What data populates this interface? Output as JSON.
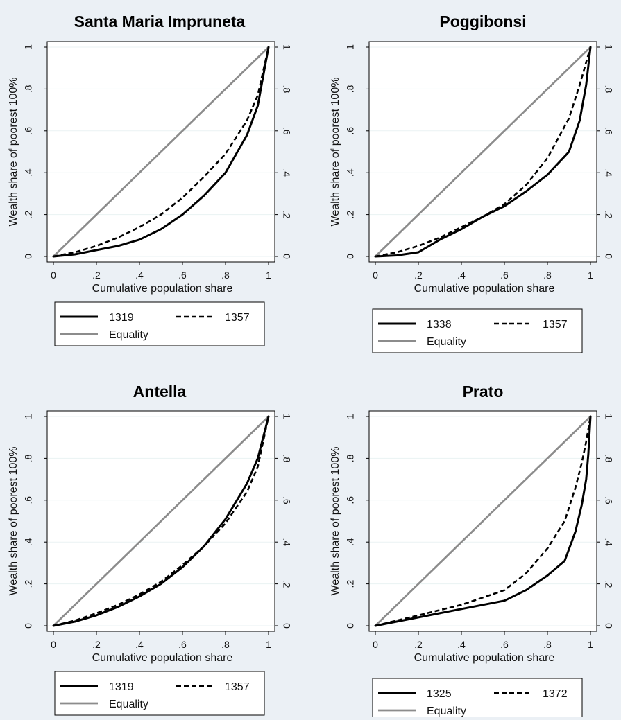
{
  "chart_data": [
    {
      "type": "line",
      "title": "Santa Maria Impruneta",
      "xlabel": "Cumulative population share",
      "ylabel": "Wealth share of poorest 100%",
      "xlim": [
        0,
        1
      ],
      "ylim": [
        0,
        1
      ],
      "x_ticks": [
        "0",
        ".2",
        ".4",
        ".6",
        ".8",
        "1"
      ],
      "y_ticks": [
        "0",
        ".2",
        ".4",
        ".6",
        ".8",
        "1"
      ],
      "series": [
        {
          "name": "1319",
          "style": "solid-black",
          "x": [
            0,
            0.1,
            0.2,
            0.3,
            0.4,
            0.5,
            0.6,
            0.7,
            0.8,
            0.9,
            0.95,
            1
          ],
          "y": [
            0,
            0.01,
            0.03,
            0.05,
            0.08,
            0.13,
            0.2,
            0.29,
            0.4,
            0.58,
            0.72,
            1
          ]
        },
        {
          "name": "1357",
          "style": "dashed-black",
          "x": [
            0,
            0.1,
            0.2,
            0.3,
            0.4,
            0.5,
            0.6,
            0.7,
            0.8,
            0.9,
            0.95,
            1
          ],
          "y": [
            0,
            0.02,
            0.05,
            0.09,
            0.14,
            0.2,
            0.28,
            0.38,
            0.49,
            0.65,
            0.77,
            1
          ]
        },
        {
          "name": "Equality",
          "style": "solid-gray",
          "x": [
            0,
            1
          ],
          "y": [
            0,
            1
          ]
        }
      ],
      "legend_rows": [
        [
          "1319",
          "1357"
        ],
        [
          "Equality"
        ]
      ],
      "legend_position": "bottom"
    },
    {
      "type": "line",
      "title": "Poggibonsi",
      "xlabel": "Cumulative population share",
      "ylabel": "Wealth share of poorest 100%",
      "xlim": [
        0,
        1
      ],
      "ylim": [
        0,
        1
      ],
      "x_ticks": [
        "0",
        ".2",
        ".4",
        ".6",
        ".8",
        "1"
      ],
      "y_ticks": [
        "0",
        ".2",
        ".4",
        ".6",
        ".8",
        "1"
      ],
      "series": [
        {
          "name": "1338",
          "style": "solid-black",
          "x": [
            0,
            0.1,
            0.2,
            0.3,
            0.4,
            0.5,
            0.6,
            0.7,
            0.8,
            0.9,
            0.95,
            0.98,
            1
          ],
          "y": [
            0,
            0.005,
            0.02,
            0.08,
            0.13,
            0.19,
            0.24,
            0.31,
            0.39,
            0.5,
            0.65,
            0.82,
            1
          ]
        },
        {
          "name": "1357",
          "style": "dashed-black",
          "x": [
            0,
            0.1,
            0.2,
            0.3,
            0.4,
            0.5,
            0.6,
            0.7,
            0.8,
            0.9,
            0.95,
            1
          ],
          "y": [
            0,
            0.02,
            0.05,
            0.09,
            0.14,
            0.19,
            0.25,
            0.34,
            0.47,
            0.66,
            0.82,
            1
          ]
        },
        {
          "name": "Equality",
          "style": "solid-gray",
          "x": [
            0,
            1
          ],
          "y": [
            0,
            1
          ]
        }
      ],
      "legend_rows": [
        [
          "1338",
          "1357"
        ],
        [
          "Equality"
        ]
      ],
      "legend_position": "bottom"
    },
    {
      "type": "line",
      "title": "Antella",
      "xlabel": "Cumulative population share",
      "ylabel": "Wealth share of poorest 100%",
      "xlim": [
        0,
        1
      ],
      "ylim": [
        0,
        1
      ],
      "x_ticks": [
        "0",
        ".2",
        ".4",
        ".6",
        ".8",
        "1"
      ],
      "y_ticks": [
        "0",
        ".2",
        ".4",
        ".6",
        ".8",
        "1"
      ],
      "series": [
        {
          "name": "1319",
          "style": "solid-black",
          "x": [
            0,
            0.1,
            0.2,
            0.3,
            0.4,
            0.5,
            0.6,
            0.7,
            0.8,
            0.9,
            0.95,
            1
          ],
          "y": [
            0,
            0.02,
            0.05,
            0.09,
            0.14,
            0.2,
            0.28,
            0.38,
            0.51,
            0.68,
            0.8,
            1
          ]
        },
        {
          "name": "1357",
          "style": "dashed-black",
          "x": [
            0,
            0.1,
            0.2,
            0.3,
            0.4,
            0.5,
            0.6,
            0.7,
            0.8,
            0.9,
            0.95,
            1
          ],
          "y": [
            0,
            0.025,
            0.06,
            0.1,
            0.15,
            0.21,
            0.29,
            0.38,
            0.49,
            0.64,
            0.76,
            1
          ]
        },
        {
          "name": "Equality",
          "style": "solid-gray",
          "x": [
            0,
            1
          ],
          "y": [
            0,
            1
          ]
        }
      ],
      "legend_rows": [
        [
          "1319",
          "1357"
        ],
        [
          "Equality"
        ]
      ],
      "legend_position": "bottom"
    },
    {
      "type": "line",
      "title": "Prato",
      "xlabel": "Cumulative population share",
      "ylabel": "Wealth share of poorest 100%",
      "xlim": [
        0,
        1
      ],
      "ylim": [
        0,
        1
      ],
      "x_ticks": [
        "0",
        ".2",
        ".4",
        ".6",
        ".8",
        "1"
      ],
      "y_ticks": [
        "0",
        ".2",
        ".4",
        ".6",
        ".8",
        "1"
      ],
      "series": [
        {
          "name": "1325",
          "style": "solid-black",
          "x": [
            0,
            0.2,
            0.4,
            0.6,
            0.7,
            0.8,
            0.88,
            0.93,
            0.96,
            0.98,
            0.99,
            1
          ],
          "y": [
            0,
            0.04,
            0.08,
            0.12,
            0.17,
            0.24,
            0.31,
            0.45,
            0.58,
            0.7,
            0.82,
            1
          ]
        },
        {
          "name": "1372",
          "style": "dashed-black",
          "x": [
            0,
            0.2,
            0.4,
            0.6,
            0.7,
            0.8,
            0.88,
            0.93,
            0.96,
            0.98,
            1
          ],
          "y": [
            0,
            0.05,
            0.1,
            0.17,
            0.25,
            0.37,
            0.5,
            0.66,
            0.78,
            0.88,
            1
          ]
        },
        {
          "name": "Equality",
          "style": "solid-gray",
          "x": [
            0,
            1
          ],
          "y": [
            0,
            1
          ]
        }
      ],
      "legend_rows": [
        [
          "1325",
          "1372"
        ],
        [
          "Equality"
        ]
      ],
      "legend_position": "bottom"
    }
  ],
  "colors": {
    "background": "#ebf0f5",
    "plot_bg": "#ffffff",
    "series_main": "#000000",
    "equality": "#8c8c8c",
    "gridline": "#eaf2f3"
  }
}
